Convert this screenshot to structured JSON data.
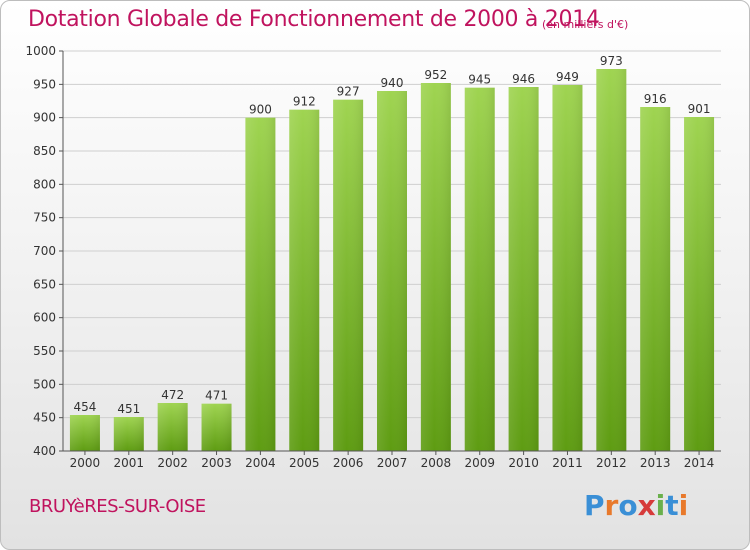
{
  "header": {
    "title": "Dotation Globale de Fonctionnement de 2000 à 2014",
    "unit": "(en milliers d'€)"
  },
  "footer": {
    "commune": "BRUYèRES-SUR-OISE"
  },
  "logo": {
    "text": "Proxiti",
    "letters": [
      "P",
      "r",
      "o",
      "x",
      "i",
      "t",
      "i"
    ],
    "colors": [
      "#3a8fd6",
      "#e8792b",
      "#3a8fd6",
      "#d63a3a",
      "#6ab04c",
      "#3a8fd6",
      "#e8792b"
    ]
  },
  "colors": {
    "title": "#c0135e",
    "bar_top": "#9fd451",
    "bar_bottom": "#5e9c12",
    "grid": "#cfcfcf",
    "axis": "#555555"
  },
  "chart_data": {
    "type": "bar",
    "categories": [
      "2000",
      "2001",
      "2002",
      "2003",
      "2004",
      "2005",
      "2006",
      "2007",
      "2008",
      "2009",
      "2010",
      "2011",
      "2012",
      "2013",
      "2014"
    ],
    "values": [
      454,
      451,
      472,
      471,
      900,
      912,
      927,
      940,
      952,
      945,
      946,
      949,
      973,
      916,
      901
    ],
    "yticks": [
      400,
      450,
      500,
      550,
      600,
      650,
      700,
      750,
      800,
      850,
      900,
      950,
      1000
    ],
    "ylim": [
      400,
      1000
    ],
    "grid": true,
    "data_labels": true
  }
}
